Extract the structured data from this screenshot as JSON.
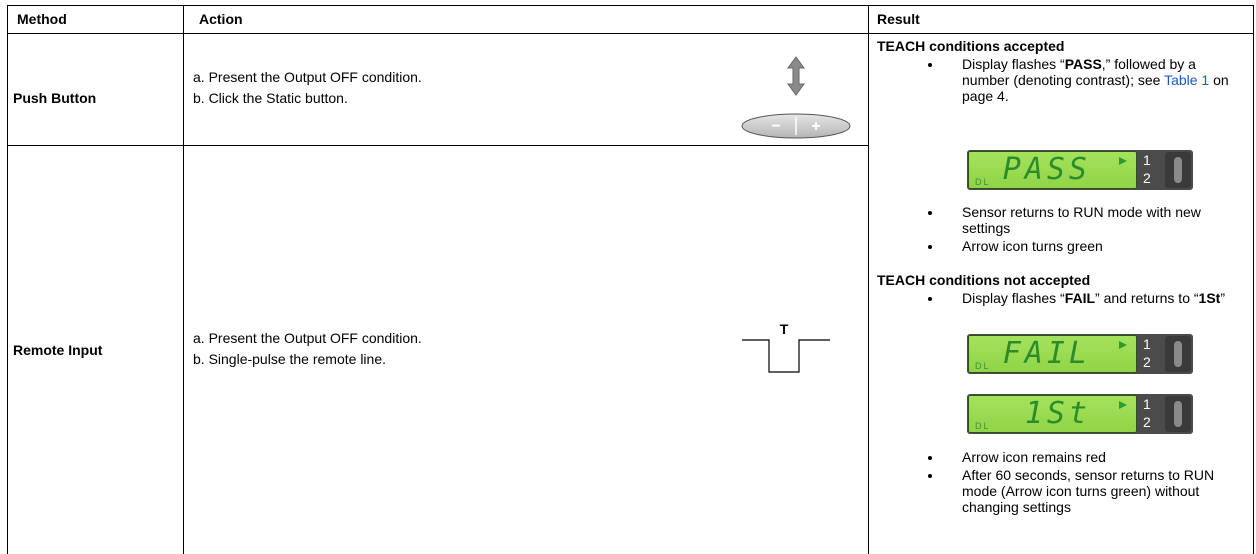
{
  "table": {
    "headers": [
      "Method",
      "Action",
      "Result"
    ],
    "rows": [
      {
        "method": "Push Button",
        "action": [
          "a. Present the Output OFF condition.",
          "b. Click the Static button."
        ],
        "button": [
          "−",
          "+"
        ]
      },
      {
        "method": "Remote Input",
        "action": [
          "a. Present the Output OFF condition.",
          "b. Single-pulse the remote line."
        ],
        "pulse": "T"
      }
    ],
    "result": {
      "accepted": {
        "heading": "TEACH conditions accepted",
        "flash": [
          "Display flashes “",
          "PASS",
          ",” followed by a number (denoting contrast); see ",
          "Table 1",
          " on page 4."
        ],
        "display": {
          "text": "PASS",
          "mode": "DL",
          "channels": [
            "1",
            "2"
          ]
        },
        "bullets": [
          "Sensor returns to RUN mode with new settings",
          "Arrow icon turns green"
        ]
      },
      "rejected": {
        "heading": "TEACH conditions not accepted",
        "flash": [
          "Display flashes “",
          "FAIL",
          "” and returns to “",
          "1St",
          "”"
        ],
        "displays": [
          {
            "text": "FAIL",
            "mode": "DL",
            "channels": [
              "1",
              "2"
            ]
          },
          {
            "text": "1St",
            "mode": "DL",
            "channels": [
              "1",
              "2"
            ]
          }
        ],
        "bullets": [
          "Arrow icon remains red",
          "After 60 seconds, sensor returns to RUN mode (Arrow icon turns green) without changing settings"
        ]
      }
    }
  }
}
